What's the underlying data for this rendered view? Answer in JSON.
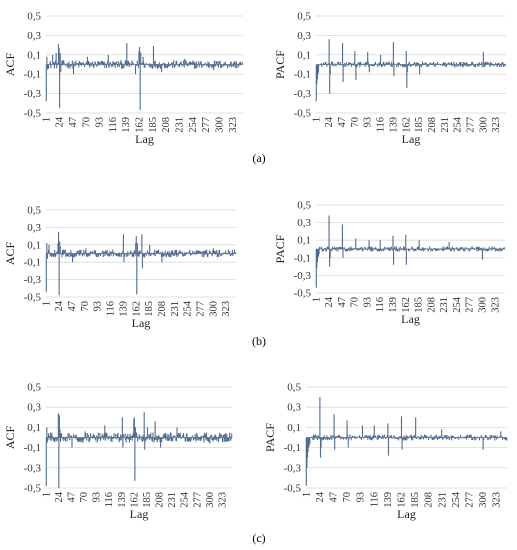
{
  "captions": [
    "(a)",
    "(b)",
    "(c)"
  ],
  "chart_data": [
    {
      "type": "bar",
      "panel": "a",
      "ylabel": "ACF",
      "xlabel": "Lag",
      "ylim": [
        -0.5,
        0.5
      ],
      "yticks": [
        "0,5",
        "0,3",
        "0,1",
        "-0,1",
        "-0,3",
        "-0,5"
      ],
      "x_ticks": [
        "1",
        "24",
        "47",
        "70",
        "93",
        "116",
        "139",
        "162",
        "185",
        "208",
        "231",
        "254",
        "277",
        "300",
        "323"
      ],
      "n_lags": 340,
      "color": "#4f6b8f",
      "spikes": [
        [
          1,
          -0.38
        ],
        [
          2,
          0.08
        ],
        [
          3,
          -0.05
        ],
        [
          12,
          0.1
        ],
        [
          18,
          0.12
        ],
        [
          22,
          0.21
        ],
        [
          23,
          0.17
        ],
        [
          24,
          -0.45
        ],
        [
          25,
          0.12
        ],
        [
          26,
          -0.08
        ],
        [
          48,
          -0.1
        ],
        [
          72,
          0.08
        ],
        [
          108,
          0.1
        ],
        [
          140,
          0.22
        ],
        [
          155,
          -0.1
        ],
        [
          161,
          0.14
        ],
        [
          162,
          0.18
        ],
        [
          163,
          -0.47
        ],
        [
          164,
          0.12
        ],
        [
          168,
          0.08
        ],
        [
          186,
          0.19
        ],
        [
          200,
          -0.08
        ],
        [
          240,
          0.06
        ],
        [
          290,
          -0.06
        ]
      ],
      "noise": 0.045
    },
    {
      "type": "bar",
      "panel": "a",
      "ylabel": "PACF",
      "xlabel": "Lag",
      "ylim": [
        -0.5,
        0.5
      ],
      "yticks": [
        "0,5",
        "0,3",
        "0,1",
        "-0,1",
        "-0,3",
        "-0,5"
      ],
      "x_ticks": [
        "1",
        "24",
        "47",
        "70",
        "93",
        "116",
        "139",
        "162",
        "185",
        "208",
        "231",
        "254",
        "277",
        "300",
        "323"
      ],
      "n_lags": 340,
      "color": "#4f6b8f",
      "spikes": [
        [
          1,
          -0.38
        ],
        [
          2,
          -0.2
        ],
        [
          3,
          -0.15
        ],
        [
          4,
          -0.1
        ],
        [
          5,
          -0.08
        ],
        [
          24,
          0.26
        ],
        [
          25,
          -0.3
        ],
        [
          26,
          -0.1
        ],
        [
          48,
          0.22
        ],
        [
          49,
          -0.18
        ],
        [
          70,
          0.14
        ],
        [
          72,
          -0.16
        ],
        [
          93,
          0.13
        ],
        [
          96,
          -0.08
        ],
        [
          116,
          0.1
        ],
        [
          139,
          0.23
        ],
        [
          140,
          -0.12
        ],
        [
          162,
          0.14
        ],
        [
          163,
          -0.24
        ],
        [
          164,
          -0.08
        ],
        [
          186,
          -0.1
        ],
        [
          300,
          0.13
        ]
      ],
      "noise": 0.03
    },
    {
      "type": "bar",
      "panel": "b",
      "ylabel": "ACF",
      "xlabel": "Lag",
      "ylim": [
        -0.5,
        0.5
      ],
      "yticks": [
        "0,5",
        "0,3",
        "0,1",
        "-0,1",
        "-0,3",
        "-0,5"
      ],
      "x_ticks": [
        "1",
        "24",
        "47",
        "70",
        "93",
        "116",
        "139",
        "162",
        "185",
        "208",
        "231",
        "254",
        "277",
        "300",
        "323"
      ],
      "n_lags": 340,
      "color": "#4f6b8f",
      "spikes": [
        [
          1,
          -0.44
        ],
        [
          2,
          0.12
        ],
        [
          3,
          -0.06
        ],
        [
          6,
          0.1
        ],
        [
          22,
          0.12
        ],
        [
          23,
          0.25
        ],
        [
          24,
          -0.48
        ],
        [
          25,
          0.14
        ],
        [
          26,
          0.08
        ],
        [
          48,
          -0.1
        ],
        [
          72,
          0.06
        ],
        [
          139,
          0.22
        ],
        [
          140,
          -0.1
        ],
        [
          161,
          0.12
        ],
        [
          162,
          0.2
        ],
        [
          163,
          -0.47
        ],
        [
          164,
          0.12
        ],
        [
          172,
          0.22
        ],
        [
          173,
          -0.17
        ],
        [
          186,
          0.1
        ],
        [
          208,
          -0.1
        ],
        [
          300,
          0.06
        ]
      ],
      "noise": 0.045
    },
    {
      "type": "bar",
      "panel": "b",
      "ylabel": "PACF",
      "xlabel": "Lag",
      "ylim": [
        -0.5,
        0.5
      ],
      "yticks": [
        "0,5",
        "0,3",
        "0,1",
        "-0,1",
        "-0,3",
        "-0,5"
      ],
      "x_ticks": [
        "1",
        "24",
        "47",
        "70",
        "93",
        "116",
        "139",
        "162",
        "185",
        "208",
        "231",
        "254",
        "277",
        "300",
        "323"
      ],
      "n_lags": 340,
      "color": "#4f6b8f",
      "spikes": [
        [
          1,
          -0.44
        ],
        [
          2,
          -0.22
        ],
        [
          3,
          -0.15
        ],
        [
          4,
          -0.1
        ],
        [
          5,
          -0.08
        ],
        [
          6,
          -0.06
        ],
        [
          24,
          0.38
        ],
        [
          25,
          -0.2
        ],
        [
          26,
          -0.1
        ],
        [
          48,
          0.28
        ],
        [
          49,
          -0.1
        ],
        [
          72,
          0.12
        ],
        [
          96,
          0.1
        ],
        [
          116,
          0.1
        ],
        [
          139,
          0.15
        ],
        [
          140,
          -0.18
        ],
        [
          162,
          0.16
        ],
        [
          163,
          -0.18
        ],
        [
          186,
          0.1
        ],
        [
          240,
          0.08
        ],
        [
          300,
          -0.12
        ]
      ],
      "noise": 0.03
    },
    {
      "type": "bar",
      "panel": "c",
      "ylabel": "ACF",
      "xlabel": "Lag",
      "ylim": [
        -0.5,
        0.5
      ],
      "yticks": [
        "0,5",
        "0,3",
        "0,1",
        "-0,1",
        "-0,3",
        "-0,5"
      ],
      "x_ticks": [
        "1",
        "24",
        "47",
        "70",
        "93",
        "116",
        "139",
        "162",
        "185",
        "208",
        "231",
        "254",
        "277",
        "300",
        "323"
      ],
      "n_lags": 340,
      "color": "#4f6b8f",
      "spikes": [
        [
          1,
          -0.48
        ],
        [
          2,
          0.1
        ],
        [
          3,
          -0.05
        ],
        [
          23,
          0.24
        ],
        [
          24,
          -0.5
        ],
        [
          25,
          0.22
        ],
        [
          26,
          0.08
        ],
        [
          48,
          -0.1
        ],
        [
          72,
          0.06
        ],
        [
          108,
          0.12
        ],
        [
          140,
          0.2
        ],
        [
          141,
          -0.1
        ],
        [
          161,
          0.18
        ],
        [
          162,
          0.2
        ],
        [
          163,
          -0.43
        ],
        [
          164,
          0.1
        ],
        [
          180,
          0.25
        ],
        [
          181,
          -0.12
        ],
        [
          186,
          0.1
        ],
        [
          200,
          0.16
        ],
        [
          210,
          -0.1
        ],
        [
          240,
          0.1
        ],
        [
          300,
          -0.06
        ]
      ],
      "noise": 0.05
    },
    {
      "type": "bar",
      "panel": "c",
      "ylabel": "PACF",
      "xlabel": "Lag",
      "ylim": [
        -0.5,
        0.5
      ],
      "yticks": [
        "0,5",
        "0,3",
        "0,1",
        "-0,1",
        "-0,3",
        "-0,5"
      ],
      "x_ticks": [
        "1",
        "24",
        "47",
        "70",
        "93",
        "116",
        "139",
        "162",
        "185",
        "208",
        "231",
        "254",
        "277",
        "300",
        "323"
      ],
      "n_lags": 340,
      "color": "#4f6b8f",
      "spikes": [
        [
          1,
          -0.48
        ],
        [
          2,
          -0.3
        ],
        [
          3,
          -0.2
        ],
        [
          4,
          -0.14
        ],
        [
          5,
          -0.1
        ],
        [
          6,
          -0.08
        ],
        [
          7,
          -0.06
        ],
        [
          24,
          0.4
        ],
        [
          25,
          -0.2
        ],
        [
          26,
          -0.1
        ],
        [
          48,
          0.23
        ],
        [
          49,
          -0.12
        ],
        [
          70,
          0.17
        ],
        [
          72,
          -0.1
        ],
        [
          96,
          0.12
        ],
        [
          116,
          0.12
        ],
        [
          139,
          0.14
        ],
        [
          140,
          -0.18
        ],
        [
          162,
          0.21
        ],
        [
          163,
          -0.12
        ],
        [
          186,
          0.2
        ],
        [
          230,
          0.08
        ],
        [
          300,
          -0.12
        ],
        [
          330,
          0.06
        ]
      ],
      "noise": 0.03
    }
  ]
}
